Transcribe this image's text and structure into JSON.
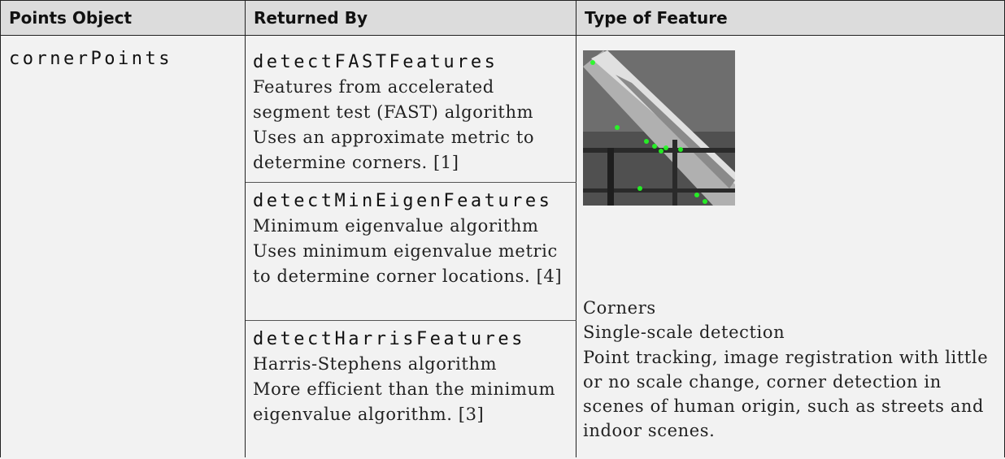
{
  "table": {
    "header": [
      "Points Object",
      "Returned By",
      "Type of Feature"
    ],
    "rows": [
      {
        "points_object": "cornerPoints",
        "returned_by": [
          {
            "function": "detectFASTFeatures",
            "description": "Features from accelerated segment test (FAST) algorithm",
            "note": "Uses an approximate metric to determine corners. [1]"
          },
          {
            "function": "detectMinEigenFeatures",
            "description": "Minimum eigenvalue algorithm",
            "note": "Uses minimum eigenvalue metric to determine corner locations. [4]"
          },
          {
            "function": "detectHarrisFeatures",
            "description": "Harris-Stephens algorithm",
            "note": "More efficient than the minimum eigenvalue algorithm. [3]"
          }
        ],
        "type_of_feature": [
          "Corners",
          "Single-scale detection",
          "Point tracking, image registration with little or no scale change, corner detection in scenes of human origin, such as streets and indoor scenes."
        ]
      }
    ]
  }
}
